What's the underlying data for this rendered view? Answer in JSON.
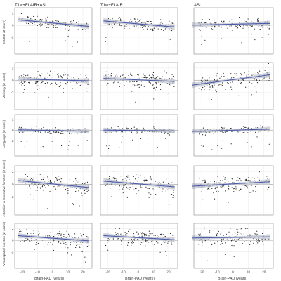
{
  "chart_data": {
    "type": "scatter",
    "layout": "facet-grid",
    "columns": [
      "T1w+FLAIR+ASL",
      "T1w+FLAIR",
      "ASL"
    ],
    "rows": [
      "MMSE (Z-score)",
      "Memory (Z-score)",
      "Language (Z-score)",
      "Attention & Executive function (Z-score)",
      "Visuospatial function (Z-score)"
    ],
    "xlabel": "Brain-PAD (years)",
    "x_ticks": [
      -20,
      -10,
      0,
      10,
      20
    ],
    "xlim": [
      -25,
      26
    ],
    "y_ticks": [
      -2,
      0,
      2
    ],
    "ylim": [
      -4.8,
      2.9
    ],
    "grid": true,
    "colors": {
      "points": "#222222",
      "fit_line": "#4a5aa8",
      "ci_band": "#c4c8d4",
      "zero_line": "#8a8a8a",
      "panel_border": "#888888",
      "grid": "#ececec"
    },
    "panels": [
      {
        "row": 0,
        "col": 0,
        "fit": {
          "x": [
            -23,
            24
          ],
          "y": [
            0.9,
            -0.2
          ]
        }
      },
      {
        "row": 0,
        "col": 1,
        "fit": {
          "x": [
            -23,
            24
          ],
          "y": [
            0.7,
            -0.3
          ]
        }
      },
      {
        "row": 0,
        "col": 2,
        "fit": {
          "x": [
            -26,
            24
          ],
          "y": [
            0.0,
            0.3
          ]
        }
      },
      {
        "row": 1,
        "col": 0,
        "fit": {
          "x": [
            -23,
            24
          ],
          "y": [
            0.2,
            -0.1
          ]
        }
      },
      {
        "row": 1,
        "col": 1,
        "fit": {
          "x": [
            -23,
            24
          ],
          "y": [
            0.3,
            -0.2
          ]
        }
      },
      {
        "row": 1,
        "col": 2,
        "fit": {
          "x": [
            -26,
            24
          ],
          "y": [
            -0.8,
            0.9
          ]
        }
      },
      {
        "row": 2,
        "col": 0,
        "fit": {
          "x": [
            -23,
            24
          ],
          "y": [
            0.05,
            -0.2
          ]
        }
      },
      {
        "row": 2,
        "col": 1,
        "fit": {
          "x": [
            -23,
            24
          ],
          "y": [
            0.0,
            -0.15
          ]
        }
      },
      {
        "row": 2,
        "col": 2,
        "fit": {
          "x": [
            -26,
            24
          ],
          "y": [
            -0.25,
            0.2
          ]
        }
      },
      {
        "row": 3,
        "col": 0,
        "fit": {
          "x": [
            -23,
            24
          ],
          "y": [
            0.6,
            -0.5
          ]
        }
      },
      {
        "row": 3,
        "col": 1,
        "fit": {
          "x": [
            -23,
            24
          ],
          "y": [
            0.5,
            -0.4
          ]
        }
      },
      {
        "row": 3,
        "col": 2,
        "fit": {
          "x": [
            -26,
            24
          ],
          "y": [
            -0.3,
            0.4
          ]
        }
      },
      {
        "row": 4,
        "col": 0,
        "fit": {
          "x": [
            -23,
            24
          ],
          "y": [
            0.8,
            -0.1
          ]
        }
      },
      {
        "row": 4,
        "col": 1,
        "fit": {
          "x": [
            -23,
            24
          ],
          "y": [
            0.8,
            0.1
          ]
        }
      },
      {
        "row": 4,
        "col": 2,
        "fit": {
          "x": [
            -26,
            24
          ],
          "y": [
            0.4,
            0.6
          ]
        }
      }
    ]
  }
}
